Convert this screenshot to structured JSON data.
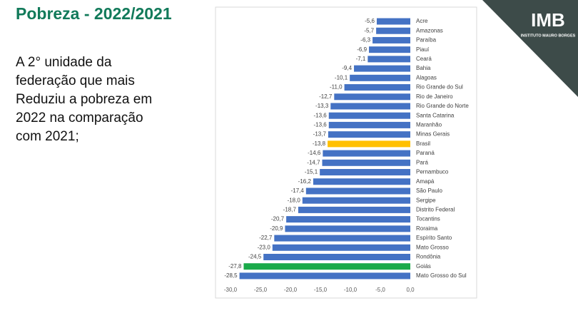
{
  "header": {
    "title": "Pobreza - 2022/2021"
  },
  "text_lines": [
    "A 2° unidade da",
    "federação que mais",
    "Reduziu a pobreza em",
    "2022 na comparação",
    "com 2021;"
  ],
  "logo": {
    "text": "IMB",
    "subtitle": "INSTITUTO MAURO BORGES"
  },
  "chart_data": {
    "type": "barh",
    "categories": [
      "Acre",
      "Amazonas",
      "Paraíba",
      "Piauí",
      "Ceará",
      "Bahia",
      "Alagoas",
      "Rio Grande do Sul",
      "Rio de Janeiro",
      "Rio Grande do Norte",
      "Santa Catarina",
      "Maranhão",
      "Minas Gerais",
      "Brasil",
      "Paraná",
      "Pará",
      "Pernambuco",
      "Amapá",
      "São Paulo",
      "Sergipe",
      "Distrito Federal",
      "Tocantins",
      "Roraima",
      "Espírito Santo",
      "Mato Grosso",
      "Rondônia",
      "Goiás",
      "Mato Grosso do Sul"
    ],
    "values": [
      -5.6,
      -5.7,
      -6.3,
      -6.9,
      -7.1,
      -9.4,
      -10.1,
      -11.0,
      -12.7,
      -13.3,
      -13.6,
      -13.6,
      -13.7,
      -13.8,
      -14.6,
      -14.7,
      -15.1,
      -16.2,
      -17.4,
      -18.0,
      -18.7,
      -20.7,
      -20.9,
      -22.7,
      -23.0,
      -24.5,
      -27.8,
      -28.5
    ],
    "value_labels": [
      "-5,6",
      "-5,7",
      "-6,3",
      "-6,9",
      "-7,1",
      "-9,4",
      "-10,1",
      "-11,0",
      "-12,7",
      "-13,3",
      "-13,6",
      "-13,6",
      "-13,7",
      "-13,8",
      "-14,6",
      "-14,7",
      "-15,1",
      "-16,2",
      "-17,4",
      "-18,0",
      "-18,7",
      "-20,7",
      "-20,9",
      "-22,7",
      "-23,0",
      "-24,5",
      "-27,8",
      "-28,5"
    ],
    "colors": [
      "#4472c4",
      "#4472c4",
      "#4472c4",
      "#4472c4",
      "#4472c4",
      "#4472c4",
      "#4472c4",
      "#4472c4",
      "#4472c4",
      "#4472c4",
      "#4472c4",
      "#4472c4",
      "#4472c4",
      "#ffc000",
      "#4472c4",
      "#4472c4",
      "#4472c4",
      "#4472c4",
      "#4472c4",
      "#4472c4",
      "#4472c4",
      "#4472c4",
      "#4472c4",
      "#4472c4",
      "#4472c4",
      "#4472c4",
      "#1aaa4a",
      "#4472c4"
    ],
    "xlim": [
      -30,
      0
    ],
    "xticks": [
      {
        "value": -30,
        "label": "-30,0"
      },
      {
        "value": -25,
        "label": "-25,0"
      },
      {
        "value": -20,
        "label": "-20,0"
      },
      {
        "value": -15,
        "label": "-15,0"
      },
      {
        "value": -10,
        "label": "-10,0"
      },
      {
        "value": -5,
        "label": "-5,0"
      },
      {
        "value": 0,
        "label": "0,0"
      }
    ]
  }
}
